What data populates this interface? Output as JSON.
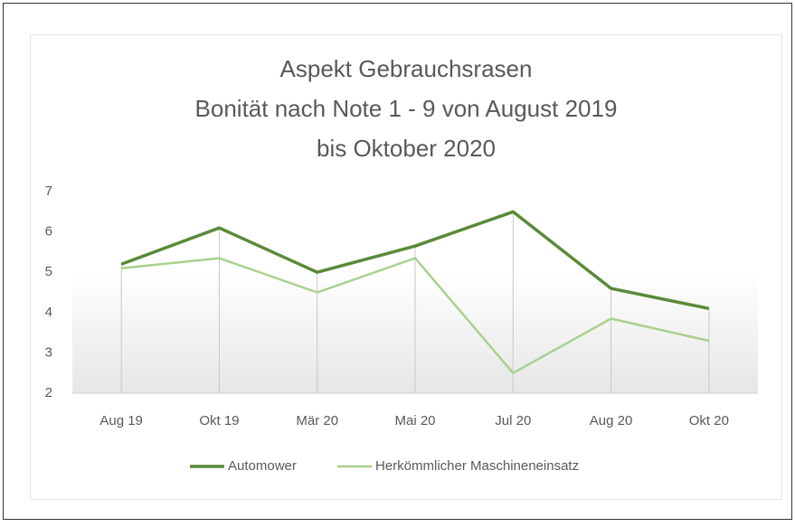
{
  "chart_data": {
    "type": "line",
    "title": [
      "Aspekt Gebrauchsrasen",
      "Bonität nach Note 1 - 9 von August 2019",
      "bis Oktober 2020"
    ],
    "categories": [
      "Aug 19",
      "Okt 19",
      "Mär 20",
      "Mai 20",
      "Jul 20",
      "Aug 20",
      "Okt 20"
    ],
    "series": [
      {
        "name": "Automower",
        "color": "#5a8a38",
        "values": [
          5.2,
          6.1,
          5.0,
          5.65,
          6.5,
          4.6,
          4.1
        ]
      },
      {
        "name": "Herkömmlicher Maschineneinsatz",
        "color": "#a9d18e",
        "values": [
          5.1,
          5.35,
          4.5,
          5.35,
          2.5,
          3.85,
          3.3
        ]
      }
    ],
    "ylim": [
      2,
      7
    ],
    "yticks": [
      2,
      3,
      4,
      5,
      6,
      7
    ],
    "grid": false,
    "drop_lines": true,
    "legend": "bottom"
  }
}
